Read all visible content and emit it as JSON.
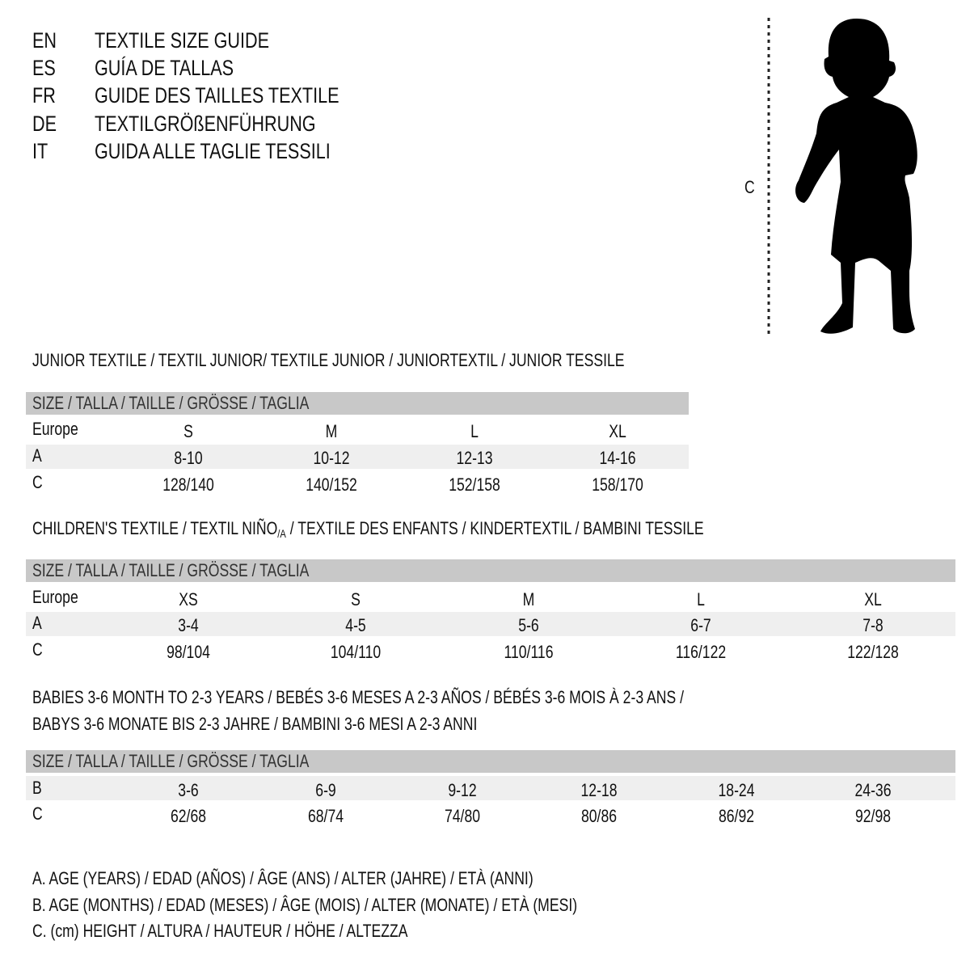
{
  "titles": [
    {
      "code": "EN",
      "text": "TEXTILE SIZE GUIDE"
    },
    {
      "code": "ES",
      "text": "GUÍA DE TALLAS"
    },
    {
      "code": "FR",
      "text": "GUIDE DES TAILLES TEXTILE"
    },
    {
      "code": "DE",
      "text": "TEXTILGRÖßENFÜHRUNG"
    },
    {
      "code": "IT",
      "text": "GUIDA ALLE TAGLIE TESSILI"
    }
  ],
  "figure": {
    "label": "C"
  },
  "size_header": "SIZE / TALLA / TAILLE / GRÖSSE / TAGLIA",
  "junior": {
    "heading": "JUNIOR TEXTILE / TEXTIL JUNIOR/ TEXTILE JUNIOR / JUNIORTEXTIL / JUNIOR TESSILE",
    "rows": [
      {
        "label": "Europe",
        "values": [
          "S",
          "M",
          "L",
          "XL"
        ]
      },
      {
        "label": "A",
        "values": [
          "8-10",
          "10-12",
          "12-13",
          "14-16"
        ]
      },
      {
        "label": "C",
        "values": [
          "128/140",
          "140/152",
          "152/158",
          "158/170"
        ]
      }
    ]
  },
  "children": {
    "heading_before": "CHILDREN'S TEXTILE / TEXTIL NIÑO",
    "heading_sub": "/A",
    "heading_after": " / TEXTILE DES ENFANTS / KINDERTEXTIL / BAMBINI TESSILE",
    "rows": [
      {
        "label": "Europe",
        "values": [
          "XS",
          "S",
          "M",
          "L",
          "XL"
        ]
      },
      {
        "label": "A",
        "values": [
          "3-4",
          "4-5",
          "5-6",
          "6-7",
          "7-8"
        ]
      },
      {
        "label": "C",
        "values": [
          "98/104",
          "104/110",
          "110/116",
          "116/122",
          "122/128"
        ]
      }
    ]
  },
  "babies": {
    "heading_line1": "BABIES 3-6 MONTH TO 2-3 YEARS / BEBÉS 3-6 MESES A 2-3 AÑOS / BÉBÉS 3-6 MOIS À 2-3 ANS /",
    "heading_line2": "BABYS 3-6 MONATE BIS 2-3 JAHRE / BAMBINI 3-6 MESI A 2-3 ANNI",
    "rows": [
      {
        "label": "B",
        "values": [
          "3-6",
          "6-9",
          "9-12",
          "12-18",
          "18-24",
          "24-36"
        ]
      },
      {
        "label": "C",
        "values": [
          "62/68",
          "68/74",
          "74/80",
          "80/86",
          "86/92",
          "92/98"
        ]
      }
    ]
  },
  "legend": [
    "A. AGE (YEARS) / EDAD (AÑOS) / ÂGE (ANS) / ALTER (JAHRE) / ETÀ (ANNI)",
    "B. AGE (MONTHS) / EDAD (MESES) / ÂGE (MOIS) / ALTER (MONATE) / ETÀ (MESI)",
    "C. (cm) HEIGHT / ALTURA / HAUTEUR / HÖHE / ALTEZZA"
  ]
}
